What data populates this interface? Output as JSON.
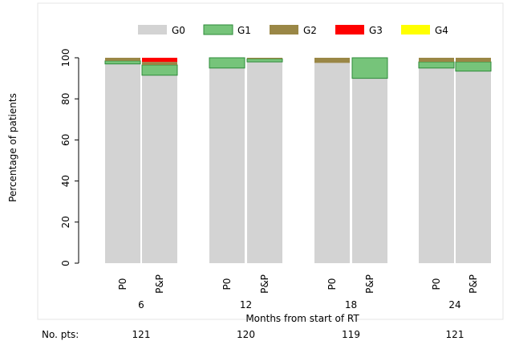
{
  "chart_data": {
    "type": "bar",
    "stacked": true,
    "xlabel": "Months from start of RT",
    "ylabel": "Percentage of patients",
    "ylim": [
      0,
      100
    ],
    "yticks": [
      0,
      20,
      40,
      60,
      80,
      100
    ],
    "grid": false,
    "legend_position": "top",
    "groups": [
      {
        "label": "6",
        "n_label": "121",
        "bars": [
          "P0",
          "P&P"
        ]
      },
      {
        "label": "12",
        "n_label": "120",
        "bars": [
          "P0",
          "P&P"
        ]
      },
      {
        "label": "18",
        "n_label": "119",
        "bars": [
          "P0",
          "P&P"
        ]
      },
      {
        "label": "24",
        "n_label": "121",
        "bars": [
          "P0",
          "P&P"
        ]
      }
    ],
    "categories": [
      "6 P0",
      "6 P&P",
      "12 P0",
      "12 P&P",
      "18 P0",
      "18 P&P",
      "24 P0",
      "24 P&P"
    ],
    "series": [
      {
        "name": "G0",
        "color": "#d3d3d3",
        "values": [
          97.0,
          91.5,
          95.0,
          98.0,
          97.5,
          90.0,
          95.0,
          93.5
        ]
      },
      {
        "name": "G1",
        "color": "#76c47a",
        "values": [
          1.5,
          5.0,
          5.0,
          1.5,
          0.0,
          10.0,
          3.0,
          4.5
        ]
      },
      {
        "name": "G2",
        "color": "#9a8746",
        "values": [
          1.5,
          1.5,
          0.0,
          0.5,
          2.5,
          0.0,
          2.0,
          2.0
        ]
      },
      {
        "name": "G3",
        "color": "#ff0000",
        "values": [
          0.0,
          2.0,
          0.0,
          0.0,
          0.0,
          0.0,
          0.0,
          0.0
        ]
      },
      {
        "name": "G4",
        "color": "#ffff00",
        "values": [
          0,
          0,
          0,
          0,
          0,
          0,
          0,
          0
        ]
      }
    ],
    "n_row_label": "No. pts:"
  }
}
